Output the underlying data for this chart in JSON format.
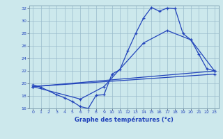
{
  "xlabel": "Graphe des températures (°c)",
  "bg_color": "#cce8ec",
  "line_color": "#2244bb",
  "grid_color": "#99bbcc",
  "xlim": [
    -0.5,
    23.5
  ],
  "ylim": [
    16,
    32.5
  ],
  "yticks": [
    16,
    18,
    20,
    22,
    24,
    26,
    28,
    30,
    32
  ],
  "xticks": [
    0,
    1,
    2,
    3,
    4,
    5,
    6,
    7,
    8,
    9,
    10,
    11,
    12,
    13,
    14,
    15,
    16,
    17,
    18,
    19,
    20,
    21,
    22,
    23
  ],
  "line1_x": [
    0,
    1,
    3,
    4,
    5,
    6,
    7,
    8,
    9,
    10,
    11,
    12,
    13,
    14,
    15,
    16,
    17,
    18,
    19,
    20,
    21,
    22,
    23
  ],
  "line1_y": [
    19.8,
    19.4,
    18.2,
    17.7,
    17.1,
    16.3,
    16.0,
    18.1,
    18.2,
    21.5,
    22.2,
    25.2,
    28.0,
    30.5,
    32.2,
    31.6,
    32.1,
    32.0,
    28.0,
    27.0,
    24.7,
    22.4,
    22.0
  ],
  "line2_x": [
    0,
    23
  ],
  "line2_y": [
    19.5,
    22.0
  ],
  "line3_x": [
    0,
    23
  ],
  "line3_y": [
    19.5,
    21.5
  ],
  "line4_x": [
    0,
    6,
    9,
    14,
    17,
    20,
    23
  ],
  "line4_y": [
    19.5,
    17.5,
    19.5,
    26.5,
    28.5,
    27.0,
    22.0
  ]
}
